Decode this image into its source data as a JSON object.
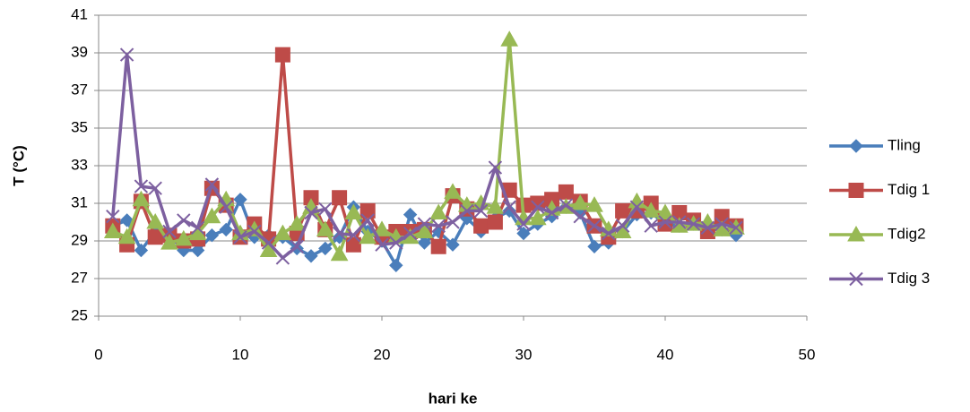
{
  "chart_data": {
    "type": "line",
    "x_label": "hari ke",
    "y_label": "T (°C)",
    "x": [
      1,
      2,
      3,
      4,
      5,
      6,
      7,
      8,
      9,
      10,
      11,
      12,
      13,
      14,
      15,
      16,
      17,
      18,
      19,
      20,
      21,
      22,
      23,
      24,
      25,
      26,
      27,
      28,
      29,
      30,
      31,
      32,
      33,
      34,
      35,
      36,
      37,
      38,
      39,
      40,
      41,
      42,
      43,
      44,
      45
    ],
    "series": [
      {
        "name": "Tling",
        "color": "#4a7ebb",
        "marker": "diamond",
        "values": [
          29.8,
          30.1,
          28.5,
          29.5,
          29.3,
          28.5,
          28.5,
          29.3,
          29.6,
          31.2,
          29.2,
          29.3,
          29.2,
          28.6,
          28.2,
          28.6,
          29.2,
          30.8,
          29.5,
          29.0,
          27.7,
          30.4,
          28.9,
          29.5,
          28.8,
          30.2,
          29.5,
          30.2,
          30.6,
          29.4,
          29.9,
          30.3,
          30.8,
          30.5,
          28.7,
          28.9,
          29.5,
          30.4,
          30.5,
          29.9,
          29.8,
          29.9,
          29.6,
          29.6,
          29.3
        ]
      },
      {
        "name": "Tdig 1",
        "color": "#be4b48",
        "marker": "square",
        "values": [
          29.8,
          28.8,
          31.1,
          29.2,
          29.3,
          29.0,
          29.1,
          31.8,
          30.9,
          29.2,
          29.9,
          29.1,
          38.9,
          29.4,
          31.3,
          29.6,
          31.3,
          28.8,
          30.6,
          29.2,
          29.5,
          29.5,
          29.6,
          28.7,
          31.4,
          30.7,
          29.8,
          30.0,
          31.7,
          30.9,
          31.0,
          31.2,
          31.6,
          31.1,
          29.8,
          29.2,
          30.6,
          30.6,
          31.0,
          29.9,
          30.5,
          30.1,
          29.5,
          30.3,
          29.8
        ]
      },
      {
        "name": "Tdig2",
        "color": "#98b954",
        "marker": "triangle",
        "values": [
          29.5,
          29.2,
          31.2,
          30.0,
          28.9,
          29.1,
          29.4,
          30.3,
          31.2,
          29.4,
          29.6,
          28.5,
          29.4,
          29.9,
          30.8,
          29.6,
          28.3,
          30.5,
          29.2,
          29.6,
          29.2,
          29.2,
          29.5,
          30.5,
          31.6,
          30.9,
          31.0,
          30.8,
          39.7,
          30.2,
          30.2,
          30.7,
          30.8,
          31.0,
          30.9,
          29.6,
          29.5,
          31.1,
          30.6,
          30.5,
          29.8,
          29.9,
          30.0,
          29.6,
          29.7
        ]
      },
      {
        "name": "Tdig 3",
        "color": "#7d60a0",
        "marker": "x",
        "values": [
          30.3,
          38.9,
          31.9,
          31.8,
          29.5,
          30.1,
          29.7,
          32.0,
          30.8,
          29.2,
          29.5,
          28.9,
          28.1,
          28.7,
          30.5,
          30.7,
          29.4,
          29.3,
          30.1,
          28.8,
          28.9,
          29.4,
          29.9,
          29.8,
          30.0,
          30.6,
          30.6,
          32.9,
          30.8,
          29.9,
          30.8,
          30.5,
          30.9,
          30.3,
          29.8,
          29.4,
          29.8,
          30.8,
          29.8,
          30.0,
          30.0,
          29.9,
          29.7,
          29.9,
          29.7
        ]
      }
    ],
    "xlim": [
      0,
      50
    ],
    "xticks": [
      0,
      10,
      20,
      30,
      40,
      50
    ],
    "ylim": [
      25,
      41
    ],
    "yticks": [
      25,
      27,
      29,
      31,
      33,
      35,
      37,
      39,
      41
    ],
    "grid": true,
    "legend": "right"
  }
}
